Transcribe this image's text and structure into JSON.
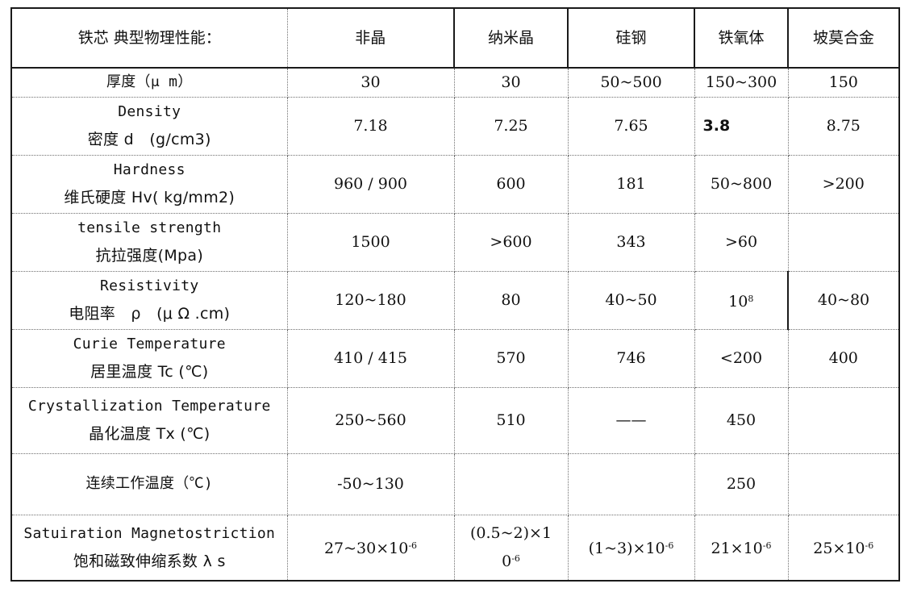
{
  "header": {
    "label": "铁芯 典型物理性能：",
    "columns": [
      "非晶",
      "纳米晶",
      "硅钢",
      "铁氧体",
      "坡莫合金"
    ]
  },
  "rows": [
    {
      "label_en": "",
      "label_cn": "厚度（μ m）",
      "cells": [
        "30",
        "30",
        "50~500",
        "150~300",
        "150"
      ]
    },
    {
      "label_en": "Density",
      "label_cn": "密度 d　(g/cm3)",
      "cells": [
        "7.18",
        "7.25",
        "7.65",
        "3.8",
        "8.75"
      ]
    },
    {
      "label_en": "Hardness",
      "label_cn": "维氏硬度 Hv( kg/mm2)",
      "cells": [
        "960 / 900",
        "600",
        "181",
        "50~800",
        ">200"
      ]
    },
    {
      "label_en": "tensile strength",
      "label_cn": "抗拉强度(Mpa)",
      "cells": [
        "1500",
        ">600",
        "343",
        ">60",
        ""
      ]
    },
    {
      "label_en": "Resistivity",
      "label_cn": "电阻率　ρ　(μ Ω .cm)",
      "cells": [
        "120~180",
        "80",
        "40~50",
        "10",
        "40~80"
      ],
      "exponent_4": "8"
    },
    {
      "label_en": "Curie Temperature",
      "label_cn": "居里温度 Tc (℃)",
      "cells": [
        "410 / 415",
        "570",
        "746",
        "<200",
        "400"
      ]
    },
    {
      "label_en": "Crystallization Temperature",
      "label_cn": "晶化温度 Tx (℃)",
      "cells": [
        "250~560",
        "510",
        "——",
        "450",
        ""
      ]
    },
    {
      "label_en": "",
      "label_cn": "连续工作温度（℃)",
      "cells": [
        "-50~130",
        "",
        "",
        "250",
        ""
      ]
    },
    {
      "label_en": "Satuiration Magnetostriction",
      "label_cn": "饱和磁致伸缩系数 λ s",
      "cells": [
        "27~30×10",
        "(0.5~2)×1",
        "(1~3)×10",
        "21×10",
        "25×10"
      ],
      "cell2_line2": "0",
      "exponent": "-6"
    }
  ]
}
